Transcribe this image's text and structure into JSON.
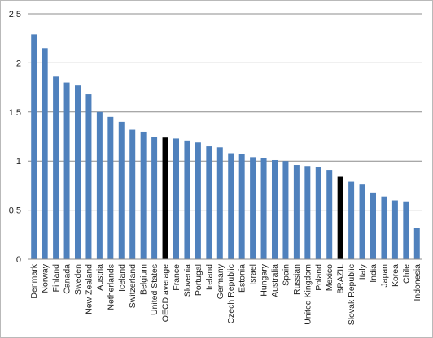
{
  "chart_data": {
    "type": "bar",
    "title": "",
    "xlabel": "",
    "ylabel": "",
    "ylim": [
      0,
      2.5
    ],
    "yticks": [
      "0",
      "0.5",
      "1",
      "1.5",
      "2",
      "2.5"
    ],
    "grid": true,
    "legend": "none",
    "categories": [
      "Denmark",
      "Norway",
      "Finland",
      "Canada",
      "Sweden",
      "New Zealand",
      "Austria",
      "Netherlands",
      "Iceland",
      "Switzerland",
      "Belgium",
      "United States",
      "OECD average",
      "France",
      "Slovenia",
      "Portugal",
      "Ireland",
      "Germany",
      "Czech Republic",
      "Estonia",
      "Israel",
      "Hungary",
      "Australia",
      "Spain",
      "Russian",
      "United Kingdom",
      "Poland",
      "Mexico",
      "BRAZIL",
      "Slovak Republic",
      "Italy",
      "India",
      "Japan",
      "Korea",
      "Chile",
      "Indonesia"
    ],
    "values": [
      2.29,
      2.15,
      1.86,
      1.8,
      1.77,
      1.68,
      1.5,
      1.45,
      1.4,
      1.32,
      1.3,
      1.25,
      1.24,
      1.23,
      1.21,
      1.19,
      1.15,
      1.14,
      1.08,
      1.07,
      1.04,
      1.03,
      1.01,
      1.0,
      0.96,
      0.95,
      0.94,
      0.91,
      0.84,
      0.79,
      0.76,
      0.68,
      0.64,
      0.6,
      0.59,
      0.32
    ],
    "colors": {
      "default_bar": "#4f81bd",
      "highlight_bar": "#000000",
      "grid": "#8c8c8c",
      "axis": "#8c8c8c"
    },
    "highlighted": [
      "OECD average",
      "BRAZIL"
    ]
  }
}
